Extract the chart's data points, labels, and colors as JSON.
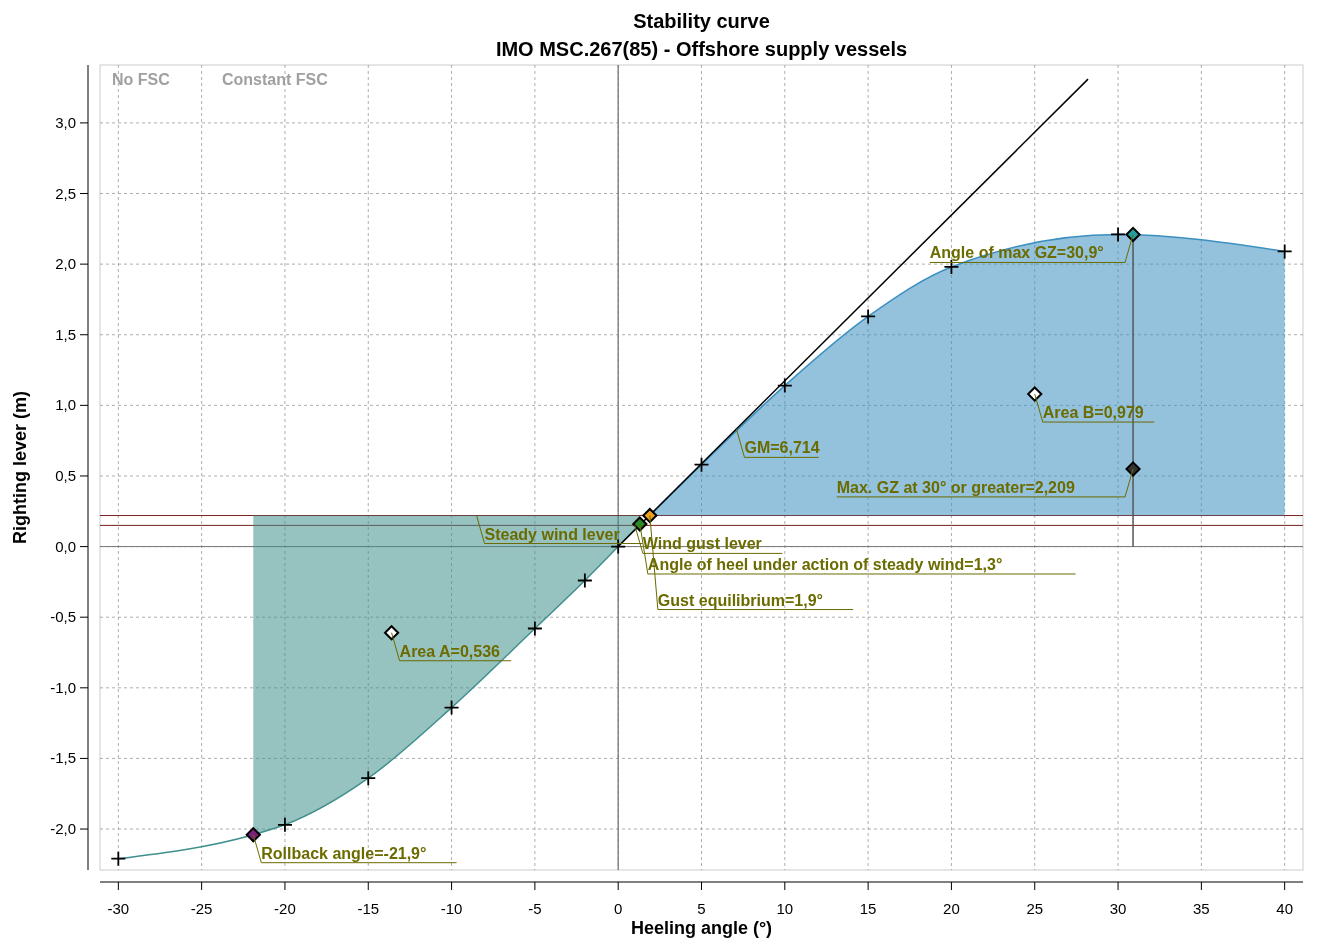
{
  "chart_data": {
    "type": "line",
    "title": "Stability curve",
    "subtitle": "IMO MSC.267(85) - Offshore supply vessels",
    "xlabel": "Heeling angle (°)",
    "ylabel": "Righting lever (m)",
    "xlim": [
      -31.1,
      41.1
    ],
    "ylim": [
      -2.29,
      3.41
    ],
    "xticks": [
      -30,
      -25,
      -20,
      -15,
      -10,
      -5,
      0,
      5,
      10,
      15,
      20,
      25,
      30,
      35,
      40
    ],
    "yticks": [
      {
        "value": -2,
        "label": "-2,0"
      },
      {
        "value": -1.5,
        "label": "-1,5"
      },
      {
        "value": -1,
        "label": "-1,0"
      },
      {
        "value": -0.5,
        "label": "-0,5"
      },
      {
        "value": 0,
        "label": "0,0"
      },
      {
        "value": 0.5,
        "label": "0,5"
      },
      {
        "value": 1,
        "label": "1,0"
      },
      {
        "value": 1.5,
        "label": "1,5"
      },
      {
        "value": 2,
        "label": "2,0"
      },
      {
        "value": 2.5,
        "label": "2,5"
      },
      {
        "value": 3,
        "label": "3,0"
      }
    ],
    "grid": true,
    "series": [
      {
        "color": "#3f8f8d",
        "x": [
          -30,
          -21.9,
          -20,
          -15,
          -10,
          -5,
          -2,
          0,
          1.3
        ],
        "values": [
          -2.21,
          -2.04,
          -1.97,
          -1.64,
          -1.14,
          -0.58,
          -0.24,
          0,
          0.16
        ],
        "lower": [
          null,
          -2.04,
          -1.97,
          -1.64,
          -1.14,
          -0.58,
          -0.24,
          0,
          0.16
        ],
        "upper": [
          null,
          0.22,
          0.22,
          0.22,
          0.22,
          0.22,
          0.22,
          0.22,
          0.22
        ],
        "marker": "cross"
      },
      {
        "color": "#3c8fc0",
        "x": [
          1.9,
          5,
          10,
          15,
          20,
          30,
          40
        ],
        "values": [
          0.22,
          0.58,
          1.14,
          1.63,
          1.98,
          2.21,
          2.09
        ],
        "lower": [
          0.22,
          0.22,
          0.22,
          0.22,
          0.22,
          0.22,
          0.22
        ],
        "upper": [
          0.22,
          0.58,
          1.14,
          1.63,
          1.98,
          2.21,
          2.09
        ],
        "marker": "cross"
      },
      {
        "color": "#000000",
        "x": [
          0,
          28.2
        ],
        "values": [
          0,
          3.31
        ]
      },
      {
        "color": "#555555",
        "x": [
          30.9,
          30.9
        ],
        "values": [
          0,
          2.21
        ]
      },
      {
        "type": "scatter",
        "marker": "diamond",
        "x": [
          -21.9,
          -13.6,
          1.3,
          1.9,
          25,
          30.9,
          30.9
        ],
        "values": [
          -2.04,
          -0.61,
          0.16,
          0.22,
          1.08,
          2.21,
          0.55
        ],
        "colors": [
          "#7b1f7b",
          "#ffffff",
          "#2a8a2a",
          "#f0a020",
          "#ffffff",
          "#20a0a0",
          "#333333"
        ]
      }
    ],
    "ref_lines": [
      {
        "axis": "x",
        "value": 0,
        "color": "#777777"
      },
      {
        "axis": "y",
        "value": 0,
        "color": "#777777"
      },
      {
        "axis": "y",
        "value": 0.22,
        "color": "#7a2020"
      },
      {
        "axis": "y",
        "value": 0.15,
        "color": "#7a2020"
      }
    ],
    "annotations": [
      {
        "text": "Rollback angle=-21,9°",
        "x": -21.9,
        "y": -2.04
      },
      {
        "text": "Area A=0,536",
        "x": -13.6,
        "y": -0.61
      },
      {
        "text": "Steady wind lever",
        "x": -8.5,
        "y": 0.22
      },
      {
        "text": "Wind gust lever",
        "x": 1,
        "y": 0.15
      },
      {
        "text": "Angle of heel under action of steady wind=1,3°",
        "x": 1.3,
        "y": 0.16
      },
      {
        "text": "Gust equilibrium=1,9°",
        "x": 1.9,
        "y": 0.22
      },
      {
        "text": "GM=6,714",
        "x": 7.1,
        "y": 0.83
      },
      {
        "text": "Area B=0,979",
        "x": 25,
        "y": 1.08
      },
      {
        "text": "Angle of max GZ=30,9°",
        "x": 30.9,
        "y": 2.21
      },
      {
        "text": "Max. GZ at 30° or greater=2,209",
        "x": 30.9,
        "y": 0.55
      },
      "No FSC",
      "Constant FSC"
    ]
  }
}
